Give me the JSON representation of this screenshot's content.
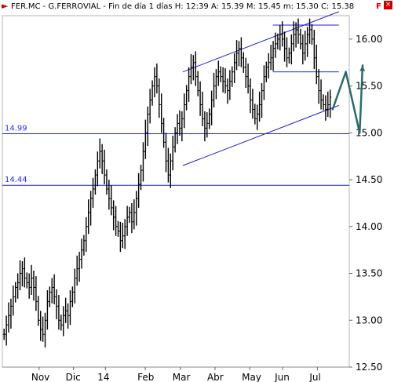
{
  "header": {
    "title": "FER.MC - G.FERROVIAL - Fin de día 1 días  H: 12:39  A: 15.39  M: 15.45  m: 15.30  C: 15.38",
    "flag": "F",
    "close": "×"
  },
  "chart_data": {
    "type": "bar",
    "style": "ohlc",
    "x_axis": {
      "labels": [
        "Nov",
        "Dic",
        "14",
        "Feb",
        "Mar",
        "Abr",
        "May",
        "Jun",
        "Jul"
      ]
    },
    "y_axis": {
      "min": 12.5,
      "max": 16.25,
      "ticks": [
        16.0,
        15.5,
        15.0,
        14.5,
        14.0,
        13.5,
        13.0,
        12.5
      ],
      "tick_labels": [
        "16.00",
        "15.50",
        "15.00",
        "14.50",
        "14.00",
        "13.50",
        "13.00",
        "12.50"
      ],
      "side": "right"
    },
    "last": {
      "open": 15.39,
      "high": 15.45,
      "low": 15.3,
      "close": 15.38
    },
    "series": [
      {
        "closes": [
          12.85,
          12.95,
          13.05,
          13.15,
          13.25,
          13.35,
          13.4,
          13.5,
          13.55,
          13.45,
          13.4,
          13.35,
          13.45,
          13.35,
          13.2,
          13.0,
          12.9,
          12.85,
          13.0,
          13.2,
          13.3,
          13.35,
          13.25,
          13.15,
          13.0,
          12.95,
          13.05,
          13.1,
          13.05,
          13.2,
          13.3,
          13.45,
          13.55,
          13.65,
          13.75,
          13.85,
          14.0,
          14.15,
          14.3,
          14.4,
          14.55,
          14.7,
          14.8,
          14.7,
          14.55,
          14.4,
          14.3,
          14.2,
          14.1,
          14.0,
          13.95,
          13.85,
          13.9,
          14.0,
          14.1,
          14.15,
          14.05,
          14.15,
          14.3,
          14.45,
          14.6,
          14.8,
          15.0,
          15.2,
          15.35,
          15.5,
          15.6,
          15.5,
          15.3,
          15.1,
          14.9,
          14.7,
          14.55,
          14.7,
          14.85,
          15.0,
          15.1,
          15.05,
          15.15,
          15.3,
          15.45,
          15.6,
          15.7,
          15.75,
          15.6,
          15.45,
          15.3,
          15.15,
          15.05,
          15.1,
          15.2,
          15.35,
          15.5,
          15.6,
          15.65,
          15.6,
          15.55,
          15.5,
          15.45,
          15.55,
          15.65,
          15.75,
          15.85,
          15.9,
          15.8,
          15.7,
          15.6,
          15.5,
          15.35,
          15.25,
          15.15,
          15.2,
          15.3,
          15.45,
          15.6,
          15.7,
          15.75,
          15.8,
          15.9,
          15.95,
          16.0,
          16.05,
          16.0,
          15.9,
          15.8,
          15.85,
          15.95,
          16.05,
          16.1,
          16.05,
          15.95,
          15.85,
          15.95,
          16.05,
          16.1,
          16.0,
          15.8,
          15.6,
          15.45,
          15.35,
          15.3,
          15.25,
          15.3,
          15.38
        ]
      }
    ],
    "levels": [
      {
        "value": 14.99,
        "label": "14.99"
      },
      {
        "value": 14.44,
        "label": "14.44"
      },
      {
        "value": 15.65
      },
      {
        "value": 16.15
      }
    ],
    "channel": {
      "upper": {
        "from": [
          0.52,
          15.65
        ],
        "to": [
          1.01,
          16.35
        ]
      },
      "lower": {
        "from": [
          0.52,
          14.65
        ],
        "to": [
          1.01,
          15.35
        ]
      }
    },
    "projection": [
      {
        "from": [
          0.952,
          15.25
        ],
        "to": [
          0.99,
          15.65
        ]
      },
      {
        "from": [
          0.99,
          15.65
        ],
        "to": [
          1.03,
          15.0
        ]
      },
      {
        "from": [
          1.03,
          15.0
        ],
        "to": [
          1.08,
          15.72
        ]
      }
    ],
    "colors": {
      "price": "#000000",
      "lines": "#1f1fd6",
      "projection": "#2d6b6b"
    }
  }
}
